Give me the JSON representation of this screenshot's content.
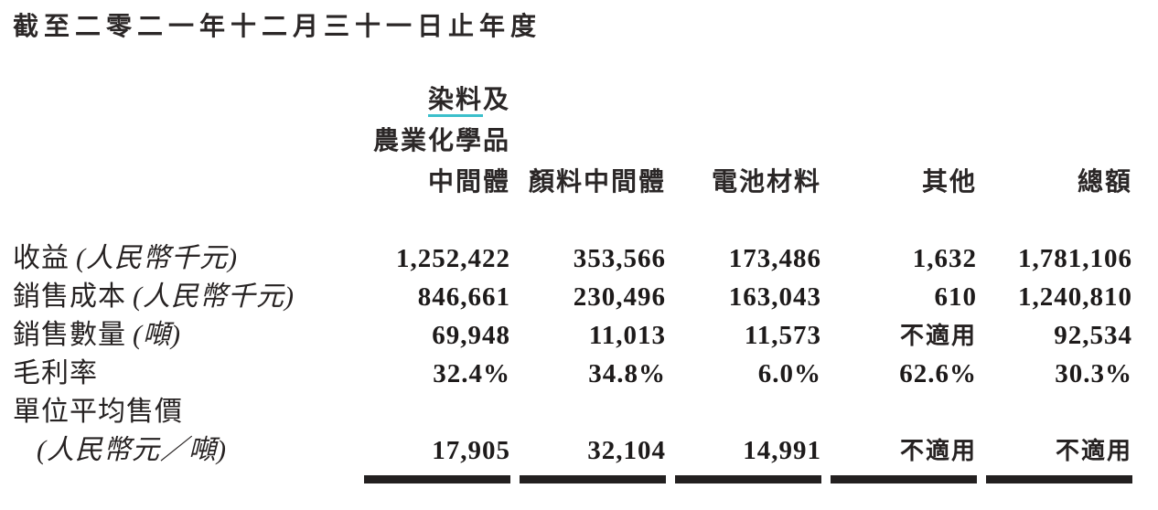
{
  "page": {
    "title": "截至二零二一年十二月三十一日止年度"
  },
  "table": {
    "header": {
      "col1": {
        "line1_underlined": "染料",
        "line1_rest": "及",
        "line2": "農業化學品",
        "line3": "中間體"
      },
      "col2": "顏料中間體",
      "col3": "電池材料",
      "col4": "其他",
      "col5": "總額"
    },
    "rows": [
      {
        "label": "收益",
        "note": "(人民幣千元)",
        "values": [
          "1,252,422",
          "353,566",
          "173,486",
          "1,632",
          "1,781,106"
        ]
      },
      {
        "label": "銷售成本",
        "note": "(人民幣千元)",
        "values": [
          "846,661",
          "230,496",
          "163,043",
          "610",
          "1,240,810"
        ]
      },
      {
        "label": "銷售數量",
        "note": "(噸)",
        "values": [
          "69,948",
          "11,013",
          "11,573",
          "不適用",
          "92,534"
        ]
      },
      {
        "label": "毛利率",
        "note": "",
        "values": [
          "32.4%",
          "34.8%",
          "6.0%",
          "62.6%",
          "30.3%"
        ]
      },
      {
        "label": "單位平均售價",
        "note": "",
        "values": [
          "",
          "",
          "",
          "",
          ""
        ]
      },
      {
        "label": "",
        "note": "(人民幣元／噸)",
        "values": [
          "17,905",
          "32,104",
          "14,991",
          "不適用",
          "不適用"
        ]
      }
    ],
    "colors": {
      "text": "#262222",
      "dyes_underline": "#3bbfcb"
    }
  }
}
